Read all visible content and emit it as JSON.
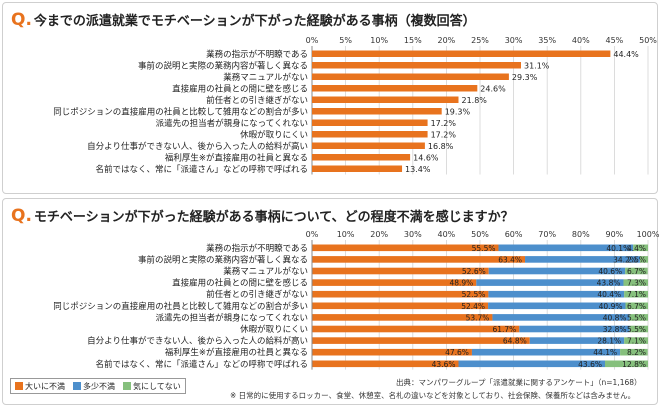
{
  "q_mark": "Q.",
  "chart_data": [
    {
      "type": "bar",
      "orientation": "horizontal",
      "title": "今までの派遣就業でモチベーションが下がった経験がある事柄（複数回答）",
      "categories": [
        "業務の指示が不明瞭である",
        "事前の説明と実際の業務内容が著しく異なる",
        "業務マニュアルがない",
        "直接雇用の社員との間に壁を感じる",
        "前任者との引き継ぎがない",
        "同じポジションの直接雇用の社員と比較して雑用などの割合が多い",
        "派遣先の担当者が親身になってくれない",
        "休暇が取りにくい",
        "自分より仕事ができない人、後から入った人の給料が高い",
        "福利厚生※が直接雇用の社員と異なる",
        "名前ではなく、常に「派遣さん」などの呼称で呼ばれる"
      ],
      "values": [
        44.4,
        31.1,
        29.3,
        24.6,
        21.8,
        19.3,
        17.2,
        17.2,
        16.8,
        14.6,
        13.4
      ],
      "value_labels": [
        "44.4%",
        "31.1%",
        "29.3%",
        "24.6%",
        "21.8%",
        "19.3%",
        "17.2%",
        "17.2%",
        "16.8%",
        "14.6%",
        "13.4%"
      ],
      "xlim": [
        0,
        50
      ],
      "x_ticks": [
        "0%",
        "5%",
        "10%",
        "15%",
        "20%",
        "25%",
        "30%",
        "35%",
        "40%",
        "45%",
        "50%"
      ],
      "color": "#e8731e",
      "grid": true
    },
    {
      "type": "bar",
      "orientation": "horizontal",
      "stacked": true,
      "title": "モチベーションが下がった経験がある事柄について、どの程度不満を感じますか？",
      "categories": [
        "業務の指示が不明瞭である",
        "事前の説明と実際の業務内容が著しく異なる",
        "業務マニュアルがない",
        "直接雇用の社員との間に壁を感じる",
        "前任者との引き継ぎがない",
        "同じポジションの直接雇用の社員と比較して雑用などの割合が多い",
        "派遣先の担当者が親身になってくれない",
        "休暇が取りにくい",
        "自分より仕事ができない人、後から入った人の給料が高い",
        "福利厚生※が直接雇用の社員と異なる",
        "名前ではなく、常に「派遣さん」などの呼称で呼ばれる"
      ],
      "series": [
        {
          "name": "大いに不満",
          "color": "#e8731e",
          "values": [
            55.5,
            63.4,
            52.6,
            48.9,
            52.5,
            52.4,
            53.7,
            61.7,
            64.8,
            47.6,
            43.6
          ]
        },
        {
          "name": "多少不満",
          "color": "#4d8fcc",
          "values": [
            40.1,
            34.2,
            40.6,
            43.8,
            40.4,
            40.9,
            40.8,
            32.8,
            28.1,
            44.1,
            43.6
          ]
        },
        {
          "name": "気にしてない",
          "color": "#86c07d",
          "values": [
            4.4,
            2.5,
            6.7,
            7.3,
            7.1,
            6.7,
            5.5,
            5.5,
            7.1,
            8.2,
            12.8
          ]
        }
      ],
      "value_labels": [
        [
          "55.5%",
          "40.1%",
          "4.4%"
        ],
        [
          "63.4%",
          "34.2%",
          "2.5%"
        ],
        [
          "52.6%",
          "40.6%",
          "6.7%"
        ],
        [
          "48.9%",
          "43.8%",
          "7.3%"
        ],
        [
          "52.5%",
          "40.4%",
          "7.1%"
        ],
        [
          "52.4%",
          "40.9%",
          "6.7%"
        ],
        [
          "53.7%",
          "40.8%",
          "5.5%"
        ],
        [
          "61.7%",
          "32.8%",
          "5.5%"
        ],
        [
          "64.8%",
          "28.1%",
          "7.1%"
        ],
        [
          "47.6%",
          "44.1%",
          "8.2%"
        ],
        [
          "43.6%",
          "43.6%",
          "12.8%"
        ]
      ],
      "xlim": [
        0,
        100
      ],
      "x_ticks": [
        "0%",
        "10%",
        "20%",
        "30%",
        "40%",
        "50%",
        "60%",
        "70%",
        "80%",
        "90%",
        "100%"
      ],
      "legend_position": "bottom-left",
      "grid": true
    }
  ],
  "legend": [
    "大いに不満",
    "多少不満",
    "気にしてない"
  ],
  "source": "出典：マンパワーグループ「派遣就業に関するアンケート」（n=1,168）",
  "note": "※ 日常的に使用するロッカー、食堂、休憩室、名札の違いなどを対象としており、社会保険、保養所などは含みません。"
}
